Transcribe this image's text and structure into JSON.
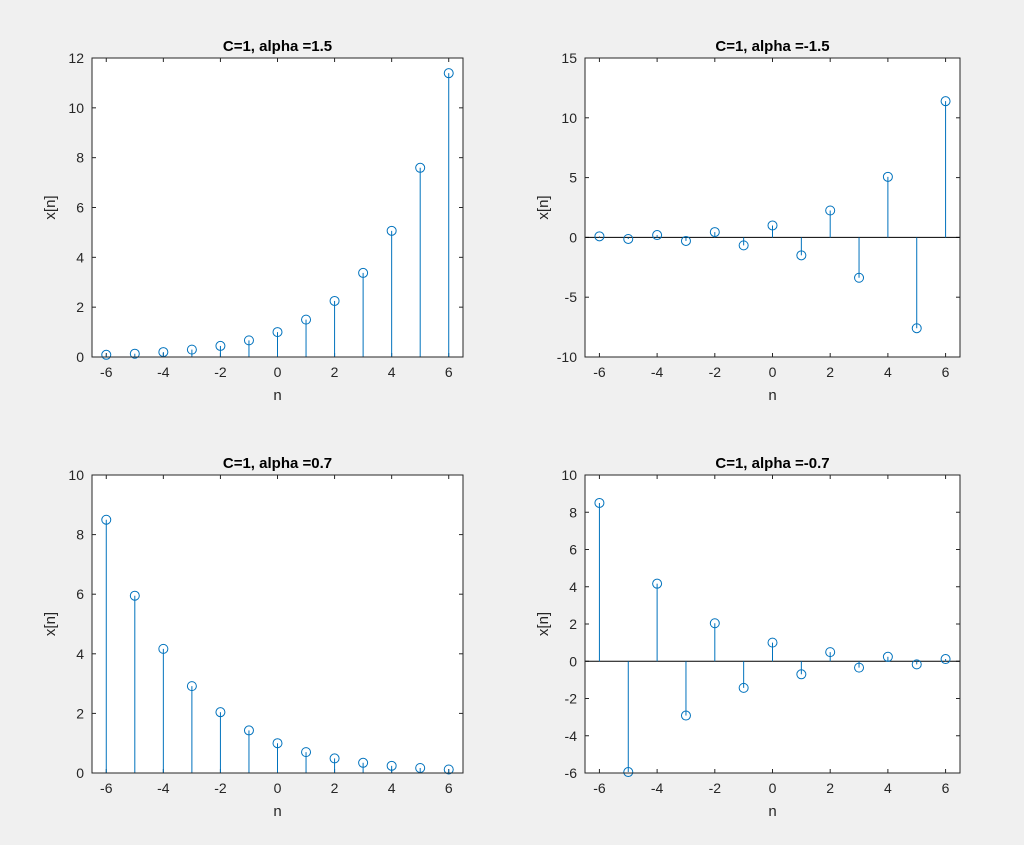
{
  "chart_data": [
    {
      "type": "stem",
      "title": "C=1, alpha =1.5",
      "xlabel": "n",
      "ylabel": "x[n]",
      "xlim": [
        -6.5,
        6.5
      ],
      "ylim": [
        0,
        12
      ],
      "xticks": [
        -6,
        -4,
        -2,
        0,
        2,
        4,
        6
      ],
      "yticks": [
        0,
        2,
        4,
        6,
        8,
        10,
        12
      ],
      "grid": false,
      "series": [
        {
          "color": "#0072bd",
          "x": [
            -6,
            -5,
            -4,
            -3,
            -2,
            -1,
            0,
            1,
            2,
            3,
            4,
            5,
            6
          ],
          "y": [
            0.088,
            0.132,
            0.198,
            0.296,
            0.444,
            0.667,
            1,
            1.5,
            2.25,
            3.375,
            5.063,
            7.594,
            11.391
          ]
        }
      ]
    },
    {
      "type": "stem",
      "title": "C=1, alpha =-1.5",
      "xlabel": "n",
      "ylabel": "x[n]",
      "xlim": [
        -6.5,
        6.5
      ],
      "ylim": [
        -10,
        15
      ],
      "xticks": [
        -6,
        -4,
        -2,
        0,
        2,
        4,
        6
      ],
      "yticks": [
        -10,
        -5,
        0,
        5,
        10,
        15
      ],
      "grid": false,
      "series": [
        {
          "color": "#0072bd",
          "x": [
            -6,
            -5,
            -4,
            -3,
            -2,
            -1,
            0,
            1,
            2,
            3,
            4,
            5,
            6
          ],
          "y": [
            0.088,
            -0.132,
            0.198,
            -0.296,
            0.444,
            -0.667,
            1,
            -1.5,
            2.25,
            -3.375,
            5.063,
            -7.594,
            11.391
          ]
        }
      ]
    },
    {
      "type": "stem",
      "title": "C=1, alpha =0.7",
      "xlabel": "n",
      "ylabel": "x[n]",
      "xlim": [
        -6.5,
        6.5
      ],
      "ylim": [
        0,
        10
      ],
      "xticks": [
        -6,
        -4,
        -2,
        0,
        2,
        4,
        6
      ],
      "yticks": [
        0,
        2,
        4,
        6,
        8,
        10
      ],
      "grid": false,
      "series": [
        {
          "color": "#0072bd",
          "x": [
            -6,
            -5,
            -4,
            -3,
            -2,
            -1,
            0,
            1,
            2,
            3,
            4,
            5,
            6
          ],
          "y": [
            8.499,
            5.949,
            4.165,
            2.915,
            2.041,
            1.429,
            1,
            0.7,
            0.49,
            0.343,
            0.24,
            0.168,
            0.118
          ]
        }
      ]
    },
    {
      "type": "stem",
      "title": "C=1, alpha =-0.7",
      "xlabel": "n",
      "ylabel": "x[n]",
      "xlim": [
        -6.5,
        6.5
      ],
      "ylim": [
        -6,
        10
      ],
      "xticks": [
        -6,
        -4,
        -2,
        0,
        2,
        4,
        6
      ],
      "yticks": [
        -6,
        -4,
        -2,
        0,
        2,
        4,
        6,
        8,
        10
      ],
      "grid": false,
      "series": [
        {
          "color": "#0072bd",
          "x": [
            -6,
            -5,
            -4,
            -3,
            -2,
            -1,
            0,
            1,
            2,
            3,
            4,
            5,
            6
          ],
          "y": [
            8.499,
            -5.949,
            4.165,
            -2.915,
            2.041,
            -1.429,
            1,
            -0.7,
            0.49,
            -0.343,
            0.24,
            -0.168,
            0.118
          ]
        }
      ]
    }
  ]
}
